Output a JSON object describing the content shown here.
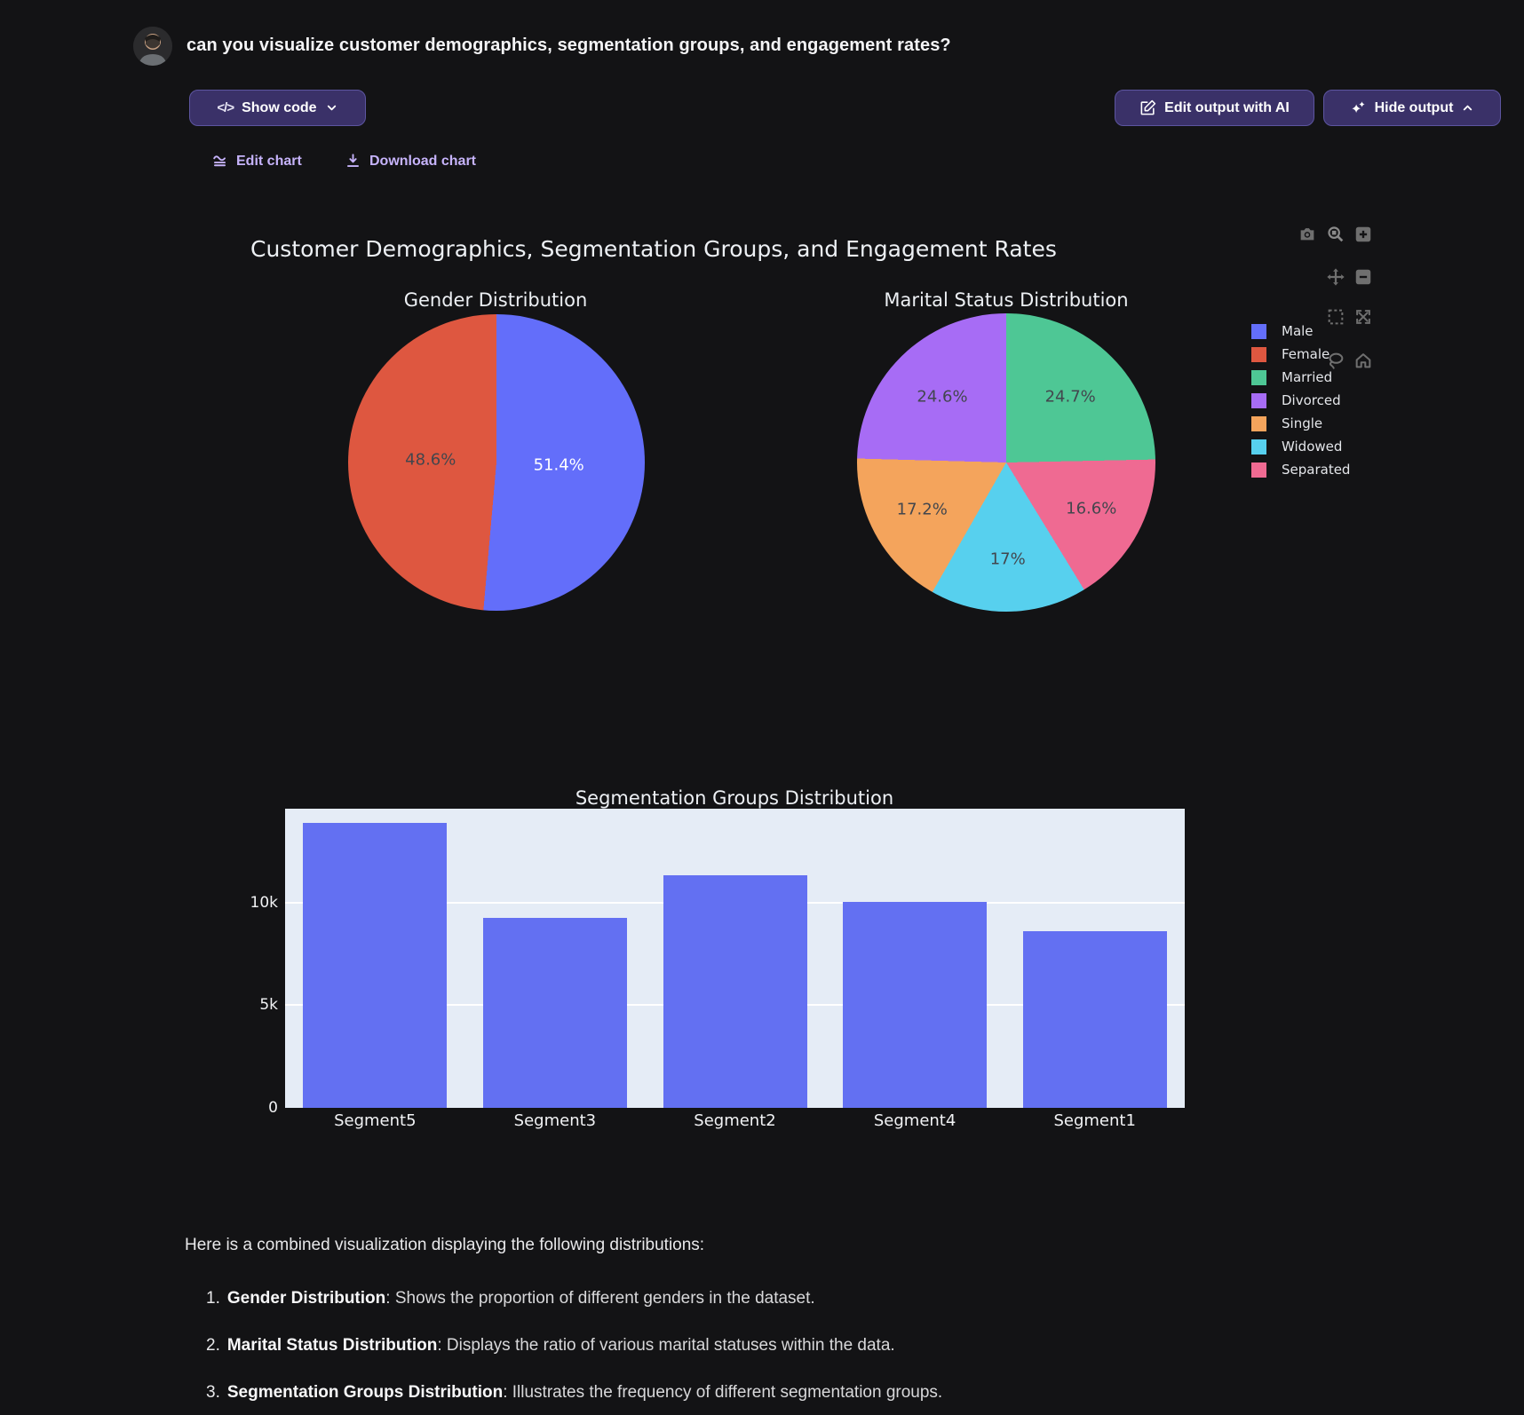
{
  "page": {
    "background": "#131315"
  },
  "user_message": {
    "text": "can you visualize customer demographics, segmentation groups, and engagement rates?"
  },
  "toolbar": {
    "show_code_label": "Show code",
    "edit_output_label": "Edit output with AI",
    "hide_output_label": "Hide output"
  },
  "chart_actions": {
    "edit_chart_label": "Edit chart",
    "download_chart_label": "Download chart"
  },
  "figure": {
    "title": "Customer Demographics, Segmentation Groups, and Engagement Rates",
    "modebar_icons": [
      "camera-icon",
      "zoom-icon",
      "zoom-in-icon",
      "pan-icon",
      "zoom-out-icon",
      "box-select-icon",
      "autoscale-icon",
      "lasso-icon",
      "home-icon"
    ],
    "legend": {
      "entries": [
        {
          "label": "Male",
          "color": "#636EFA"
        },
        {
          "label": "Female",
          "color": "#DE5740"
        },
        {
          "label": "Married",
          "color": "#4EC795"
        },
        {
          "label": "Divorced",
          "color": "#A76CF5"
        },
        {
          "label": "Single",
          "color": "#F4A45C"
        },
        {
          "label": "Widowed",
          "color": "#57D0EE"
        },
        {
          "label": "Separated",
          "color": "#EF6A92"
        }
      ]
    }
  },
  "chart_data": [
    {
      "type": "pie",
      "title": "Gender Distribution",
      "labels": [
        "Male",
        "Female"
      ],
      "values": [
        51.4,
        48.6
      ],
      "display_labels": [
        "51.4%",
        "48.6%"
      ],
      "colors": [
        "#636EFA",
        "#DE5740"
      ],
      "label_colors": [
        "#ffffff",
        "#42464d"
      ]
    },
    {
      "type": "pie",
      "title": "Marital Status Distribution",
      "labels": [
        "Married",
        "Separated",
        "Widowed",
        "Single",
        "Divorced"
      ],
      "values": [
        24.7,
        16.6,
        17.0,
        17.2,
        24.6
      ],
      "display_labels": [
        "24.7%",
        "16.6%",
        "17%",
        "17.2%",
        "24.6%"
      ],
      "colors": [
        "#4EC795",
        "#EF6A92",
        "#57D0EE",
        "#F4A45C",
        "#A76CF5"
      ],
      "label_colors": [
        "#42464d",
        "#42464d",
        "#42464d",
        "#42464d",
        "#42464d"
      ]
    },
    {
      "type": "bar",
      "title": "Segmentation Groups Distribution",
      "categories": [
        "Segment5",
        "Segment3",
        "Segment2",
        "Segment4",
        "Segment1"
      ],
      "values": [
        13900,
        9250,
        11350,
        10050,
        8600
      ],
      "bar_color": "#6370F2",
      "plot_bg": "#E5ECF6",
      "grid_color": "#FFFFFF",
      "ylim": [
        0,
        14580
      ],
      "yticks": [
        {
          "label": "0",
          "value": 0
        },
        {
          "label": "5k",
          "value": 5000
        },
        {
          "label": "10k",
          "value": 10000
        }
      ]
    }
  ],
  "analysis": {
    "intro": "Here is a combined visualization displaying the following distributions:",
    "items": [
      {
        "num": "1.",
        "name": "Gender Distribution",
        "desc": ": Shows the proportion of different genders in the dataset."
      },
      {
        "num": "2.",
        "name": "Marital Status Distribution",
        "desc": ": Displays the ratio of various marital statuses within the data."
      },
      {
        "num": "3.",
        "name": "Segmentation Groups Distribution",
        "desc": ": Illustrates the frequency of different segmentation groups."
      }
    ]
  }
}
